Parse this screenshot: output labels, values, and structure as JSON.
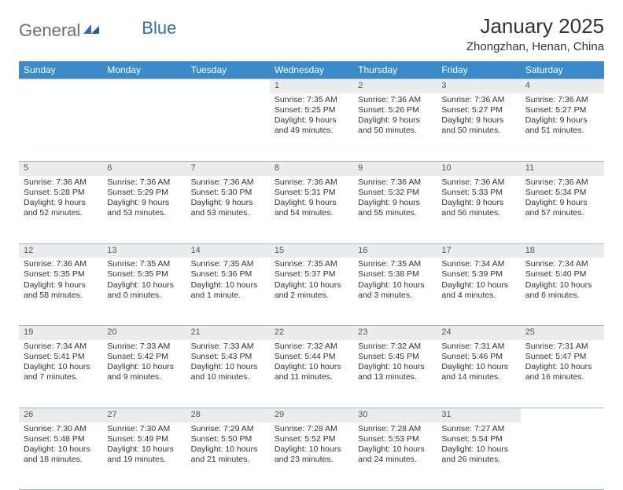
{
  "brand": {
    "part1": "General",
    "part2": "Blue"
  },
  "title": "January 2025",
  "location": "Zhongzhan, Henan, China",
  "colors": {
    "header_bg": "#3b8bc9",
    "header_text": "#ffffff",
    "daynum_bg": "#ececec",
    "rule": "#9fb8cc",
    "brand_gray": "#6e6e6e",
    "brand_blue": "#2f6fb0",
    "text": "#333333",
    "background": "#ffffff"
  },
  "weekdays": [
    "Sunday",
    "Monday",
    "Tuesday",
    "Wednesday",
    "Thursday",
    "Friday",
    "Saturday"
  ],
  "weeks": [
    [
      null,
      null,
      null,
      {
        "n": "1",
        "sunrise": "7:35 AM",
        "sunset": "5:25 PM",
        "dl": "9 hours and 49 minutes."
      },
      {
        "n": "2",
        "sunrise": "7:36 AM",
        "sunset": "5:26 PM",
        "dl": "9 hours and 50 minutes."
      },
      {
        "n": "3",
        "sunrise": "7:36 AM",
        "sunset": "5:27 PM",
        "dl": "9 hours and 50 minutes."
      },
      {
        "n": "4",
        "sunrise": "7:36 AM",
        "sunset": "5:27 PM",
        "dl": "9 hours and 51 minutes."
      }
    ],
    [
      {
        "n": "5",
        "sunrise": "7:36 AM",
        "sunset": "5:28 PM",
        "dl": "9 hours and 52 minutes."
      },
      {
        "n": "6",
        "sunrise": "7:36 AM",
        "sunset": "5:29 PM",
        "dl": "9 hours and 53 minutes."
      },
      {
        "n": "7",
        "sunrise": "7:36 AM",
        "sunset": "5:30 PM",
        "dl": "9 hours and 53 minutes."
      },
      {
        "n": "8",
        "sunrise": "7:36 AM",
        "sunset": "5:31 PM",
        "dl": "9 hours and 54 minutes."
      },
      {
        "n": "9",
        "sunrise": "7:36 AM",
        "sunset": "5:32 PM",
        "dl": "9 hours and 55 minutes."
      },
      {
        "n": "10",
        "sunrise": "7:36 AM",
        "sunset": "5:33 PM",
        "dl": "9 hours and 56 minutes."
      },
      {
        "n": "11",
        "sunrise": "7:36 AM",
        "sunset": "5:34 PM",
        "dl": "9 hours and 57 minutes."
      }
    ],
    [
      {
        "n": "12",
        "sunrise": "7:36 AM",
        "sunset": "5:35 PM",
        "dl": "9 hours and 58 minutes."
      },
      {
        "n": "13",
        "sunrise": "7:35 AM",
        "sunset": "5:35 PM",
        "dl": "10 hours and 0 minutes."
      },
      {
        "n": "14",
        "sunrise": "7:35 AM",
        "sunset": "5:36 PM",
        "dl": "10 hours and 1 minute."
      },
      {
        "n": "15",
        "sunrise": "7:35 AM",
        "sunset": "5:37 PM",
        "dl": "10 hours and 2 minutes."
      },
      {
        "n": "16",
        "sunrise": "7:35 AM",
        "sunset": "5:38 PM",
        "dl": "10 hours and 3 minutes."
      },
      {
        "n": "17",
        "sunrise": "7:34 AM",
        "sunset": "5:39 PM",
        "dl": "10 hours and 4 minutes."
      },
      {
        "n": "18",
        "sunrise": "7:34 AM",
        "sunset": "5:40 PM",
        "dl": "10 hours and 6 minutes."
      }
    ],
    [
      {
        "n": "19",
        "sunrise": "7:34 AM",
        "sunset": "5:41 PM",
        "dl": "10 hours and 7 minutes."
      },
      {
        "n": "20",
        "sunrise": "7:33 AM",
        "sunset": "5:42 PM",
        "dl": "10 hours and 9 minutes."
      },
      {
        "n": "21",
        "sunrise": "7:33 AM",
        "sunset": "5:43 PM",
        "dl": "10 hours and 10 minutes."
      },
      {
        "n": "22",
        "sunrise": "7:32 AM",
        "sunset": "5:44 PM",
        "dl": "10 hours and 11 minutes."
      },
      {
        "n": "23",
        "sunrise": "7:32 AM",
        "sunset": "5:45 PM",
        "dl": "10 hours and 13 minutes."
      },
      {
        "n": "24",
        "sunrise": "7:31 AM",
        "sunset": "5:46 PM",
        "dl": "10 hours and 14 minutes."
      },
      {
        "n": "25",
        "sunrise": "7:31 AM",
        "sunset": "5:47 PM",
        "dl": "10 hours and 16 minutes."
      }
    ],
    [
      {
        "n": "26",
        "sunrise": "7:30 AM",
        "sunset": "5:48 PM",
        "dl": "10 hours and 18 minutes."
      },
      {
        "n": "27",
        "sunrise": "7:30 AM",
        "sunset": "5:49 PM",
        "dl": "10 hours and 19 minutes."
      },
      {
        "n": "28",
        "sunrise": "7:29 AM",
        "sunset": "5:50 PM",
        "dl": "10 hours and 21 minutes."
      },
      {
        "n": "29",
        "sunrise": "7:28 AM",
        "sunset": "5:52 PM",
        "dl": "10 hours and 23 minutes."
      },
      {
        "n": "30",
        "sunrise": "7:28 AM",
        "sunset": "5:53 PM",
        "dl": "10 hours and 24 minutes."
      },
      {
        "n": "31",
        "sunrise": "7:27 AM",
        "sunset": "5:54 PM",
        "dl": "10 hours and 26 minutes."
      },
      null
    ]
  ],
  "labels": {
    "sunrise": "Sunrise:",
    "sunset": "Sunset:",
    "daylight": "Daylight:"
  }
}
